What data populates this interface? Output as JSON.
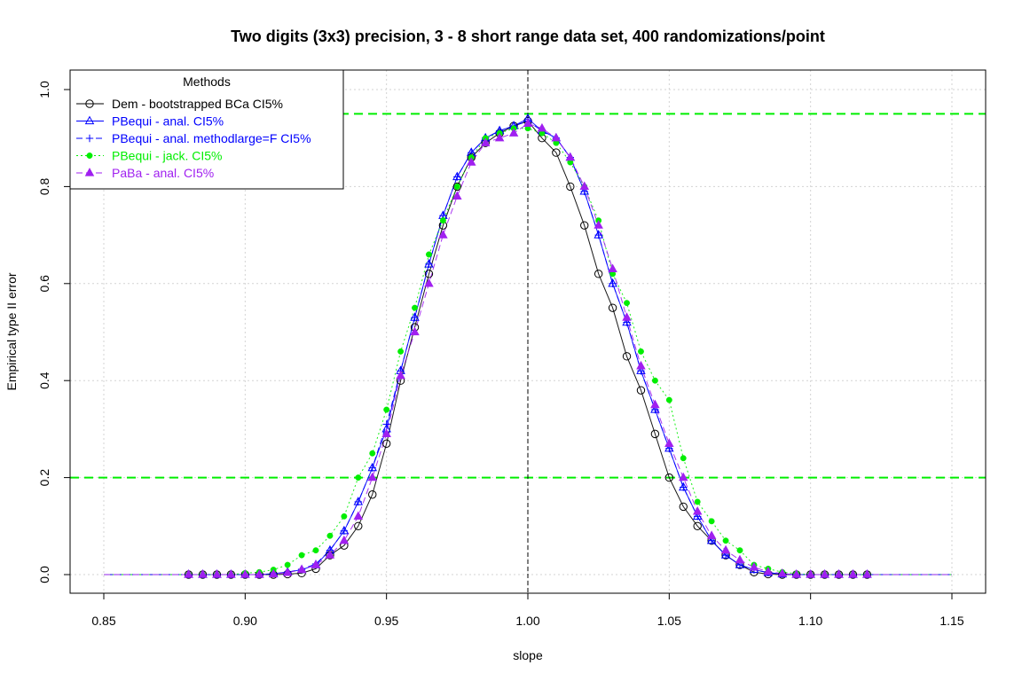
{
  "chart_data": {
    "type": "scatter",
    "title": "Two digits (3x3) precision, 3 - 8 short range data set, 400 randomizations/point",
    "xlabel": "slope",
    "ylabel": "Empirical type II error",
    "xlim": [
      0.85,
      1.15
    ],
    "ylim": [
      0.0,
      1.0
    ],
    "x_ticks": [
      "0.85",
      "0.90",
      "0.95",
      "1.00",
      "1.05",
      "1.10",
      "1.15"
    ],
    "y_ticks": [
      "0.0",
      "0.2",
      "0.4",
      "0.6",
      "0.8",
      "1.0"
    ],
    "grid": true,
    "legend_position": "top-left",
    "legend_title": "Methods",
    "reference_lines": {
      "horizontal": [
        0.2,
        0.95
      ],
      "horizontal_color": "#00ee00",
      "vertical": [
        1.0
      ],
      "vertical_color": "#000000"
    },
    "fitted_curve_range": [
      0.85,
      1.15
    ],
    "x": [
      0.88,
      0.885,
      0.89,
      0.895,
      0.9,
      0.905,
      0.91,
      0.915,
      0.92,
      0.925,
      0.93,
      0.935,
      0.94,
      0.945,
      0.95,
      0.955,
      0.96,
      0.965,
      0.97,
      0.975,
      0.98,
      0.985,
      0.99,
      0.995,
      1.0,
      1.005,
      1.01,
      1.015,
      1.02,
      1.025,
      1.03,
      1.035,
      1.04,
      1.045,
      1.05,
      1.055,
      1.06,
      1.065,
      1.07,
      1.075,
      1.08,
      1.085,
      1.09,
      1.095,
      1.1,
      1.105,
      1.11,
      1.115,
      1.12
    ],
    "series": [
      {
        "name": "Dem - bootstrapped BCa CI5%",
        "color": "#000000",
        "marker": "open-circle",
        "line_style": "solid",
        "values": [
          0.0,
          0.0,
          0.0,
          0.0,
          0.0,
          0.0,
          0.0,
          0.001,
          0.003,
          0.012,
          0.04,
          0.06,
          0.1,
          0.165,
          0.27,
          0.4,
          0.51,
          0.62,
          0.72,
          0.8,
          0.86,
          0.89,
          0.91,
          0.925,
          0.935,
          0.9,
          0.87,
          0.8,
          0.72,
          0.62,
          0.55,
          0.45,
          0.38,
          0.29,
          0.2,
          0.14,
          0.1,
          0.07,
          0.04,
          0.02,
          0.005,
          0.001,
          0.0,
          0.0,
          0.0,
          0.0,
          0.0,
          0.0,
          0.0
        ]
      },
      {
        "name": "PBequi - anal. CI5%",
        "color": "#0000ff",
        "marker": "open-triangle",
        "line_style": "solid",
        "values": [
          0.0,
          0.0,
          0.0,
          0.0,
          0.0,
          0.0,
          0.002,
          0.005,
          0.01,
          0.02,
          0.05,
          0.09,
          0.15,
          0.22,
          0.3,
          0.42,
          0.53,
          0.64,
          0.74,
          0.82,
          0.87,
          0.9,
          0.915,
          0.925,
          0.94,
          0.915,
          0.9,
          0.86,
          0.79,
          0.7,
          0.6,
          0.52,
          0.42,
          0.34,
          0.26,
          0.18,
          0.12,
          0.07,
          0.04,
          0.02,
          0.01,
          0.004,
          0.001,
          0.0,
          0.0,
          0.0,
          0.0,
          0.0,
          0.0
        ]
      },
      {
        "name": "PBequi - anal. methodlarge=F CI5%",
        "color": "#0000ff",
        "marker": "plus",
        "line_style": "dashed",
        "values": [
          0.0,
          0.0,
          0.0,
          0.0,
          0.0,
          0.0,
          0.002,
          0.005,
          0.011,
          0.022,
          0.05,
          0.09,
          0.15,
          0.22,
          0.31,
          0.42,
          0.53,
          0.64,
          0.74,
          0.82,
          0.87,
          0.9,
          0.915,
          0.925,
          0.935,
          0.915,
          0.9,
          0.86,
          0.79,
          0.7,
          0.6,
          0.52,
          0.42,
          0.34,
          0.26,
          0.18,
          0.12,
          0.07,
          0.04,
          0.02,
          0.01,
          0.004,
          0.001,
          0.0,
          0.0,
          0.0,
          0.0,
          0.0,
          0.0
        ]
      },
      {
        "name": "PBequi - jack. CI5%",
        "color": "#00ee00",
        "marker": "filled-circle",
        "line_style": "dotted",
        "values": [
          0.0,
          0.0,
          0.0,
          0.0,
          0.003,
          0.005,
          0.01,
          0.02,
          0.04,
          0.05,
          0.08,
          0.12,
          0.2,
          0.25,
          0.34,
          0.46,
          0.55,
          0.66,
          0.73,
          0.8,
          0.86,
          0.9,
          0.91,
          0.92,
          0.92,
          0.91,
          0.89,
          0.85,
          0.8,
          0.73,
          0.62,
          0.56,
          0.46,
          0.4,
          0.36,
          0.24,
          0.15,
          0.11,
          0.07,
          0.05,
          0.02,
          0.012,
          0.005,
          0.002,
          0.0,
          0.0,
          0.0,
          0.0,
          0.0
        ]
      },
      {
        "name": "PaBa - anal. CI5%",
        "color": "#a020f0",
        "marker": "filled-triangle",
        "line_style": "dashed",
        "values": [
          0.0,
          0.0,
          0.0,
          0.0,
          0.0,
          0.0,
          0.001,
          0.004,
          0.01,
          0.02,
          0.04,
          0.07,
          0.12,
          0.2,
          0.29,
          0.41,
          0.5,
          0.6,
          0.7,
          0.78,
          0.85,
          0.89,
          0.9,
          0.91,
          0.93,
          0.92,
          0.9,
          0.86,
          0.8,
          0.72,
          0.63,
          0.53,
          0.43,
          0.35,
          0.27,
          0.2,
          0.13,
          0.08,
          0.05,
          0.03,
          0.015,
          0.006,
          0.002,
          0.0,
          0.0,
          0.0,
          0.0,
          0.0,
          0.0
        ]
      }
    ]
  }
}
